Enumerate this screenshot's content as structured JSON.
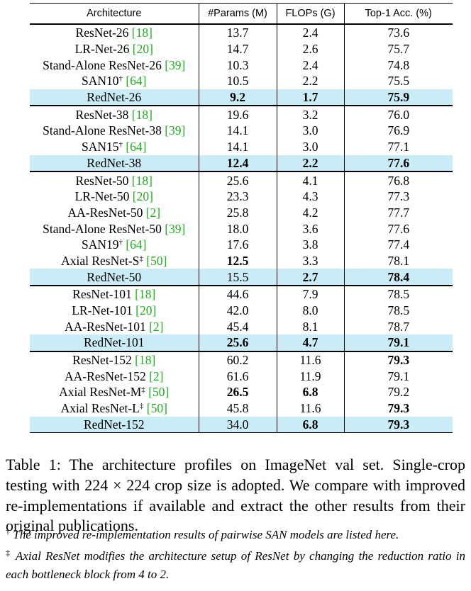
{
  "table": {
    "headers": [
      "Architecture",
      "#Params (M)",
      "FLOPs (G)",
      "Top-1 Acc. (%)"
    ],
    "groups": [
      [
        {
          "name": "ResNet-26 ",
          "ref": "[18]",
          "params": "13.7",
          "flops": "2.4",
          "acc": "73.6"
        },
        {
          "name": "LR-Net-26 ",
          "ref": "[20]",
          "params": "14.7",
          "flops": "2.6",
          "acc": "75.7"
        },
        {
          "name": "Stand-Alone ResNet-26 ",
          "ref": "[39]",
          "params": "10.3",
          "flops": "2.4",
          "acc": "74.8"
        },
        {
          "name": "SAN10",
          "sup": "†",
          "ref": " [64]",
          "params": "10.5",
          "flops": "2.2",
          "acc": "75.5"
        },
        {
          "name": "RedNet-26",
          "params": "9.2",
          "flops": "1.7",
          "acc": "75.9",
          "highlight": true,
          "bold": [
            "params",
            "flops",
            "acc"
          ]
        }
      ],
      [
        {
          "name": "ResNet-38 ",
          "ref": "[18]",
          "params": "19.6",
          "flops": "3.2",
          "acc": "76.0"
        },
        {
          "name": "Stand-Alone ResNet-38 ",
          "ref": "[39]",
          "params": "14.1",
          "flops": "3.0",
          "acc": "76.9"
        },
        {
          "name": "SAN15",
          "sup": "†",
          "ref": " [64]",
          "params": "14.1",
          "flops": "3.0",
          "acc": "77.1"
        },
        {
          "name": "RedNet-38",
          "params": "12.4",
          "flops": "2.2",
          "acc": "77.6",
          "highlight": true,
          "bold": [
            "params",
            "flops",
            "acc"
          ]
        }
      ],
      [
        {
          "name": "ResNet-50 ",
          "ref": "[18]",
          "params": "25.6",
          "flops": "4.1",
          "acc": "76.8"
        },
        {
          "name": "LR-Net-50 ",
          "ref": "[20]",
          "params": "23.3",
          "flops": "4.3",
          "acc": "77.3"
        },
        {
          "name": "AA-ResNet-50 ",
          "ref": "[2]",
          "params": "25.8",
          "flops": "4.2",
          "acc": "77.7"
        },
        {
          "name": "Stand-Alone ResNet-50 ",
          "ref": "[39]",
          "params": "18.0",
          "flops": "3.6",
          "acc": "77.6"
        },
        {
          "name": "SAN19",
          "sup": "†",
          "ref": " [64]",
          "params": "17.6",
          "flops": "3.8",
          "acc": "77.4"
        },
        {
          "name": "Axial ResNet-S",
          "sup": "‡",
          "ref": " [50]",
          "params": "12.5",
          "flops": "3.3",
          "acc": "78.1",
          "bold": [
            "params"
          ]
        },
        {
          "name": "RedNet-50",
          "params": "15.5",
          "flops": "2.7",
          "acc": "78.4",
          "highlight": true,
          "bold": [
            "flops",
            "acc"
          ]
        }
      ],
      [
        {
          "name": "ResNet-101 ",
          "ref": "[18]",
          "params": "44.6",
          "flops": "7.9",
          "acc": "78.5"
        },
        {
          "name": "LR-Net-101 ",
          "ref": "[20]",
          "params": "42.0",
          "flops": "8.0",
          "acc": "78.5"
        },
        {
          "name": "AA-ResNet-101 ",
          "ref": "[2]",
          "params": "45.4",
          "flops": "8.1",
          "acc": "78.7"
        },
        {
          "name": "RedNet-101",
          "params": "25.6",
          "flops": "4.7",
          "acc": "79.1",
          "highlight": true,
          "bold": [
            "params",
            "flops",
            "acc"
          ]
        }
      ],
      [
        {
          "name": "ResNet-152 ",
          "ref": "[18]",
          "params": "60.2",
          "flops": "11.6",
          "acc": "79.3",
          "bold": [
            "acc"
          ]
        },
        {
          "name": "AA-ResNet-152 ",
          "ref": "[2]",
          "params": "61.6",
          "flops": "11.9",
          "acc": "79.1"
        },
        {
          "name": "Axial ResNet-M",
          "sup": "‡",
          "ref": " [50]",
          "params": "26.5",
          "flops": "6.8",
          "acc": "79.2",
          "bold": [
            "params",
            "flops"
          ]
        },
        {
          "name": "Axial ResNet-L",
          "sup": "‡",
          "ref": " [50]",
          "params": "45.8",
          "flops": "11.6",
          "acc": "79.3",
          "bold": [
            "acc"
          ]
        },
        {
          "name": "RedNet-152",
          "params": "34.0",
          "flops": "6.8",
          "acc": "79.3",
          "highlight": true,
          "bold": [
            "flops",
            "acc"
          ]
        }
      ]
    ]
  },
  "caption": "Table 1: The architecture profiles on ImageNet val set. Single-crop testing with 224 × 224 crop size is adopted. We compare with improved re-implementations if available and extract the other results from their original publications.",
  "footnotes": [
    {
      "mark": "†",
      "text": " The improved re-implementation results of pairwise SAN models are listed here."
    },
    {
      "mark": "‡",
      "text": " Axial ResNet modifies the architecture setup of ResNet by changing the reduction ratio in each bottleneck block from 4 to 2."
    }
  ],
  "colors": {
    "highlight": "#c9ecf7",
    "citation": "#1fae1f"
  }
}
